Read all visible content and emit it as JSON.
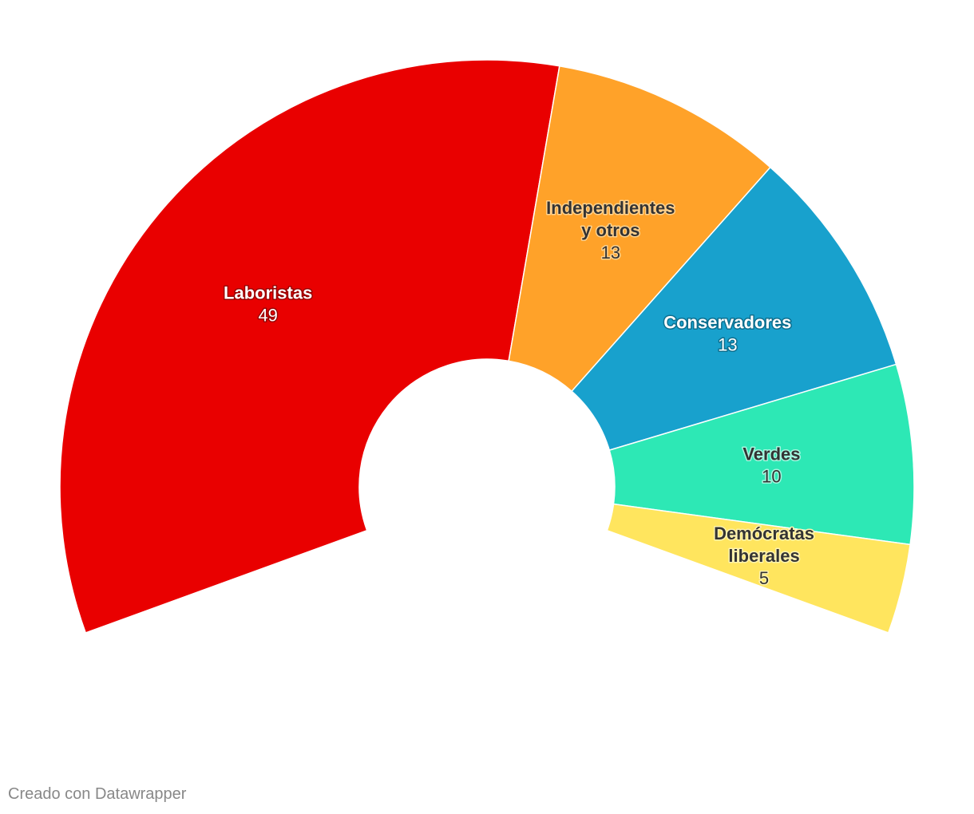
{
  "chart_data": {
    "type": "pie",
    "variant": "semicircle-donut",
    "title": "",
    "total": 90,
    "segments": [
      {
        "name_lines": [
          "Laboristas"
        ],
        "value": 49,
        "color": "#e90000",
        "label_color": "#ffffff",
        "halo_color": "#9a0000"
      },
      {
        "name_lines": [
          "Independientes",
          "y otros"
        ],
        "value": 13,
        "color": "#ffa229",
        "label_color": "#333333",
        "halo_color": "#ffd28f"
      },
      {
        "name_lines": [
          "Conservadores"
        ],
        "value": 13,
        "color": "#18a1cd",
        "label_color": "#ffffff",
        "halo_color": "#0d6f8f"
      },
      {
        "name_lines": [
          "Verdes"
        ],
        "value": 10,
        "color": "#2de8b5",
        "label_color": "#333333",
        "halo_color": "#a6f6df"
      },
      {
        "name_lines": [
          "Demócratas",
          "liberales"
        ],
        "value": 5,
        "color": "#ffe55e",
        "label_color": "#333333",
        "halo_color": "#fff3b0"
      }
    ]
  },
  "footer": {
    "credit": "Creado con Datawrapper"
  }
}
